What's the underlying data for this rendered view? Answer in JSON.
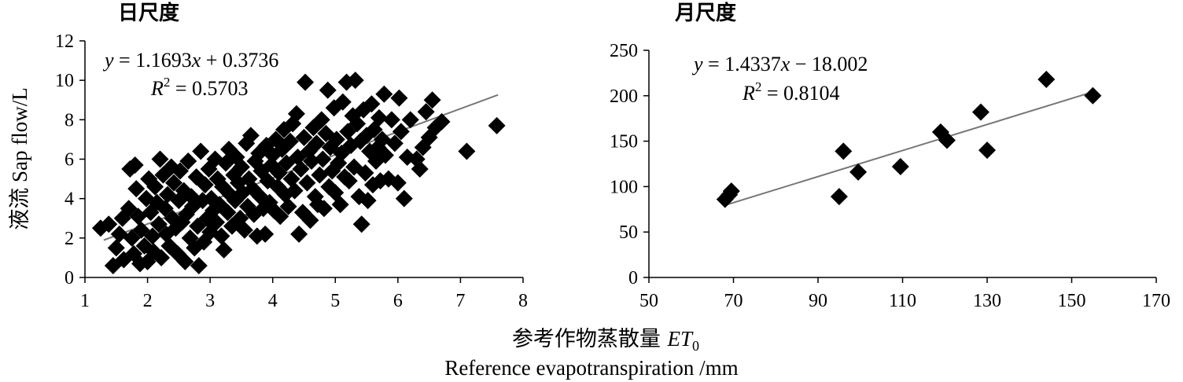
{
  "axis_labels": {
    "y": "液流 Sap flow/L",
    "x_cn": "参考作物蒸散量 ",
    "x_sym": "ET",
    "x_sub": "0",
    "x_en": "Reference evapotranspiration /mm"
  },
  "chart_data": [
    {
      "type": "scatter",
      "title": "日尺度",
      "xlim": [
        1,
        8
      ],
      "ylim": [
        0,
        12
      ],
      "xticks": [
        1,
        2,
        3,
        4,
        5,
        6,
        7,
        8
      ],
      "yticks": [
        0,
        2,
        4,
        6,
        8,
        10,
        12
      ],
      "grid": false,
      "marker": "diamond",
      "trendline": {
        "slope": 1.1693,
        "intercept": 0.3736,
        "x_range": [
          1.3,
          7.6
        ]
      },
      "equation": {
        "y": "y",
        "eq": " = 1.1693",
        "x": "x",
        "rest": " + 0.3736"
      },
      "r2": {
        "R": "R",
        "sup": "2",
        "rest": " = 0.5703"
      },
      "points": [
        [
          1.25,
          2.5
        ],
        [
          1.38,
          2.7
        ],
        [
          1.45,
          0.6
        ],
        [
          1.5,
          1.5
        ],
        [
          1.55,
          2.2
        ],
        [
          1.6,
          3.0
        ],
        [
          1.62,
          0.9
        ],
        [
          1.7,
          3.5
        ],
        [
          1.72,
          5.5
        ],
        [
          1.75,
          2.0
        ],
        [
          1.78,
          1.2
        ],
        [
          1.8,
          5.7
        ],
        [
          1.82,
          4.5
        ],
        [
          1.85,
          3.1
        ],
        [
          1.88,
          0.7
        ],
        [
          1.9,
          2.4
        ],
        [
          1.95,
          1.6
        ],
        [
          1.98,
          4.0
        ],
        [
          2.0,
          0.8
        ],
        [
          2.02,
          5.0
        ],
        [
          2.05,
          3.3
        ],
        [
          2.08,
          2.1
        ],
        [
          2.1,
          1.3
        ],
        [
          2.12,
          4.6
        ],
        [
          2.15,
          3.8
        ],
        [
          2.18,
          2.7
        ],
        [
          2.2,
          6.0
        ],
        [
          2.22,
          1.0
        ],
        [
          2.25,
          5.2
        ],
        [
          2.28,
          3.5
        ],
        [
          2.3,
          2.2
        ],
        [
          2.32,
          4.2
        ],
        [
          2.35,
          1.6
        ],
        [
          2.38,
          5.6
        ],
        [
          2.4,
          3.0
        ],
        [
          2.42,
          4.8
        ],
        [
          2.45,
          2.5
        ],
        [
          2.48,
          1.2
        ],
        [
          2.5,
          3.9
        ],
        [
          2.52,
          5.4
        ],
        [
          2.55,
          2.8
        ],
        [
          2.58,
          4.4
        ],
        [
          2.6,
          0.8
        ],
        [
          2.62,
          3.2
        ],
        [
          2.65,
          5.9
        ],
        [
          2.68,
          2.0
        ],
        [
          2.7,
          4.1
        ],
        [
          2.72,
          3.6
        ],
        [
          2.75,
          1.5
        ],
        [
          2.78,
          5.1
        ],
        [
          2.8,
          2.6
        ],
        [
          2.82,
          0.6
        ],
        [
          2.85,
          6.4
        ],
        [
          2.88,
          3.9
        ],
        [
          2.9,
          1.8
        ],
        [
          2.92,
          4.7
        ],
        [
          2.95,
          3.0
        ],
        [
          2.98,
          5.5
        ],
        [
          3.0,
          2.3
        ],
        [
          3.02,
          4.0
        ],
        [
          3.05,
          3.4
        ],
        [
          3.08,
          6.0
        ],
        [
          3.1,
          2.8
        ],
        [
          3.12,
          5.0
        ],
        [
          3.15,
          3.7
        ],
        [
          3.18,
          2.1
        ],
        [
          3.2,
          4.6
        ],
        [
          3.22,
          1.4
        ],
        [
          3.25,
          5.8
        ],
        [
          3.28,
          3.3
        ],
        [
          3.3,
          6.5
        ],
        [
          3.32,
          4.2
        ],
        [
          3.35,
          2.6
        ],
        [
          3.38,
          5.2
        ],
        [
          3.4,
          3.9
        ],
        [
          3.42,
          6.1
        ],
        [
          3.45,
          4.8
        ],
        [
          3.48,
          3.0
        ],
        [
          3.5,
          5.6
        ],
        [
          3.52,
          4.3
        ],
        [
          3.55,
          2.4
        ],
        [
          3.58,
          6.8
        ],
        [
          3.6,
          3.6
        ],
        [
          3.62,
          5.0
        ],
        [
          3.65,
          7.2
        ],
        [
          3.68,
          4.5
        ],
        [
          3.7,
          3.2
        ],
        [
          3.72,
          5.9
        ],
        [
          3.75,
          2.1
        ],
        [
          3.78,
          6.3
        ],
        [
          3.8,
          4.1
        ],
        [
          3.82,
          5.4
        ],
        [
          3.85,
          3.5
        ],
        [
          3.88,
          2.2
        ],
        [
          3.9,
          6.7
        ],
        [
          3.92,
          4.9
        ],
        [
          3.95,
          3.8
        ],
        [
          3.98,
          5.7
        ],
        [
          4.0,
          6.2
        ],
        [
          4.02,
          3.4
        ],
        [
          4.05,
          7.0
        ],
        [
          4.08,
          4.6
        ],
        [
          4.1,
          5.3
        ],
        [
          4.12,
          3.1
        ],
        [
          4.15,
          6.5
        ],
        [
          4.18,
          7.5
        ],
        [
          4.2,
          4.2
        ],
        [
          4.22,
          5.8
        ],
        [
          4.25,
          3.6
        ],
        [
          4.28,
          6.9
        ],
        [
          4.3,
          5.0
        ],
        [
          4.32,
          7.8
        ],
        [
          4.35,
          4.4
        ],
        [
          4.38,
          8.3
        ],
        [
          4.4,
          6.1
        ],
        [
          4.42,
          2.2
        ],
        [
          4.45,
          5.5
        ],
        [
          4.48,
          3.3
        ],
        [
          4.5,
          7.1
        ],
        [
          4.52,
          9.9
        ],
        [
          4.55,
          4.8
        ],
        [
          4.58,
          6.4
        ],
        [
          4.6,
          2.9
        ],
        [
          4.62,
          5.9
        ],
        [
          4.65,
          7.6
        ],
        [
          4.68,
          4.1
        ],
        [
          4.7,
          6.8
        ],
        [
          4.72,
          3.7
        ],
        [
          4.75,
          5.2
        ],
        [
          4.78,
          8.0
        ],
        [
          4.8,
          6.0
        ],
        [
          4.82,
          3.5
        ],
        [
          4.85,
          7.3
        ],
        [
          4.88,
          9.5
        ],
        [
          4.9,
          4.6
        ],
        [
          4.92,
          6.6
        ],
        [
          4.95,
          5.4
        ],
        [
          4.98,
          8.6
        ],
        [
          5.0,
          4.3
        ],
        [
          5.02,
          7.0
        ],
        [
          5.05,
          5.8
        ],
        [
          5.08,
          3.7
        ],
        [
          5.1,
          6.3
        ],
        [
          5.12,
          8.9
        ],
        [
          5.15,
          5.1
        ],
        [
          5.18,
          9.9
        ],
        [
          5.2,
          7.4
        ],
        [
          5.22,
          4.9
        ],
        [
          5.25,
          6.7
        ],
        [
          5.28,
          8.2
        ],
        [
          5.3,
          5.6
        ],
        [
          5.32,
          10.0
        ],
        [
          5.35,
          7.8
        ],
        [
          5.38,
          4.1
        ],
        [
          5.4,
          6.9
        ],
        [
          5.42,
          2.7
        ],
        [
          5.45,
          8.5
        ],
        [
          5.48,
          5.3
        ],
        [
          5.5,
          7.2
        ],
        [
          5.52,
          3.9
        ],
        [
          5.55,
          6.4
        ],
        [
          5.58,
          8.8
        ],
        [
          5.6,
          4.7
        ],
        [
          5.62,
          7.5
        ],
        [
          5.65,
          5.9
        ],
        [
          5.68,
          6.6
        ],
        [
          5.7,
          8.1
        ],
        [
          5.72,
          4.9
        ],
        [
          5.75,
          7.0
        ],
        [
          5.78,
          9.3
        ],
        [
          5.8,
          6.2
        ],
        [
          5.85,
          5.0
        ],
        [
          5.9,
          8.0
        ],
        [
          5.95,
          6.8
        ],
        [
          6.0,
          4.8
        ],
        [
          6.02,
          9.1
        ],
        [
          6.05,
          7.4
        ],
        [
          6.1,
          4.0
        ],
        [
          6.15,
          6.1
        ],
        [
          6.2,
          8.0
        ],
        [
          6.3,
          6.0
        ],
        [
          6.35,
          5.5
        ],
        [
          6.4,
          6.6
        ],
        [
          6.45,
          8.4
        ],
        [
          6.5,
          7.1
        ],
        [
          6.55,
          9.0
        ],
        [
          6.6,
          7.6
        ],
        [
          6.7,
          7.9
        ],
        [
          7.1,
          6.4
        ],
        [
          7.58,
          7.7
        ]
      ]
    },
    {
      "type": "scatter",
      "title": "月尺度",
      "xlim": [
        50,
        170
      ],
      "ylim": [
        0,
        250
      ],
      "xticks": [
        50,
        70,
        90,
        110,
        130,
        150,
        170
      ],
      "yticks": [
        0,
        50,
        100,
        150,
        200,
        250
      ],
      "grid": false,
      "marker": "diamond",
      "trendline": {
        "slope": 1.4337,
        "intercept": -18.002,
        "x_range": [
          68,
          155
        ]
      },
      "equation": {
        "y": "y",
        "eq": " = 1.4337",
        "x": "x",
        "rest": " − 18.002"
      },
      "r2": {
        "R": "R",
        "sup": "2",
        "rest": " = 0.8104"
      },
      "points": [
        [
          68,
          86
        ],
        [
          69,
          91
        ],
        [
          69.5,
          95
        ],
        [
          95,
          89
        ],
        [
          96,
          139
        ],
        [
          99.5,
          116
        ],
        [
          109.5,
          122
        ],
        [
          119,
          160
        ],
        [
          120.5,
          151
        ],
        [
          128.5,
          182
        ],
        [
          130,
          140
        ],
        [
          144,
          218
        ],
        [
          155,
          200
        ]
      ]
    }
  ]
}
